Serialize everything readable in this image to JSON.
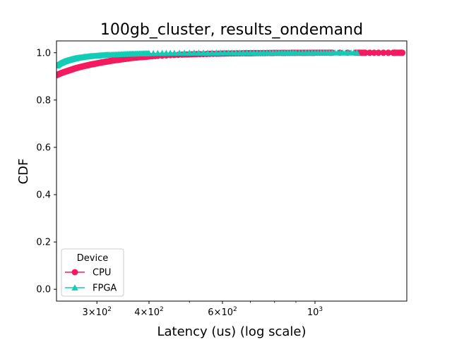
{
  "chart_data": {
    "type": "line",
    "title": "100gb_cluster, results_ondemand",
    "xlabel": "Latency (us) (log scale)",
    "ylabel": "CDF",
    "x_scale": "log",
    "xlim": [
      240,
      1660
    ],
    "ylim": [
      -0.05,
      1.05
    ],
    "x_ticks": [
      {
        "value": 300,
        "mantissa": "3",
        "base": "10",
        "exp": "2"
      },
      {
        "value": 400,
        "mantissa": "4",
        "base": "10",
        "exp": "2"
      },
      {
        "value": 600,
        "mantissa": "6",
        "base": "10",
        "exp": "2"
      },
      {
        "value": 1000,
        "mantissa": "",
        "base": "10",
        "exp": "3"
      }
    ],
    "x_minor_ticks": [
      500,
      700,
      800,
      900
    ],
    "y_ticks": [
      {
        "value": 0.0,
        "label": "0.0"
      },
      {
        "value": 0.2,
        "label": "0.2"
      },
      {
        "value": 0.4,
        "label": "0.4"
      },
      {
        "value": 0.6,
        "label": "0.6"
      },
      {
        "value": 0.8,
        "label": "0.8"
      },
      {
        "value": 1.0,
        "label": "1.0"
      }
    ],
    "grid": false,
    "legend": {
      "title": "Device",
      "placement": "lower-left"
    },
    "series": [
      {
        "name": "CPU",
        "color": "#f51b5e",
        "marker": "circle",
        "x": [
          240,
          245,
          250,
          255,
          260,
          265,
          270,
          280,
          290,
          300,
          310,
          320,
          330,
          340,
          350,
          360,
          380,
          400,
          420,
          450,
          480,
          500,
          520,
          550,
          580,
          600,
          620,
          650,
          680,
          700,
          720,
          750,
          780,
          800,
          830,
          850,
          880,
          900,
          930,
          950,
          980,
          1000,
          1040,
          1080,
          1100,
          1250,
          1280,
          1320,
          1420,
          1540,
          1560,
          1600,
          1620
        ],
        "y": [
          0.905,
          0.912,
          0.918,
          0.923,
          0.928,
          0.933,
          0.937,
          0.944,
          0.95,
          0.955,
          0.96,
          0.964,
          0.968,
          0.971,
          0.974,
          0.977,
          0.981,
          0.984,
          0.987,
          0.99,
          0.992,
          0.993,
          0.994,
          0.995,
          0.996,
          0.9965,
          0.997,
          0.9975,
          0.998,
          0.998,
          0.9985,
          0.9988,
          0.999,
          0.9992,
          0.9993,
          0.9994,
          0.9995,
          0.9996,
          0.9996,
          0.9997,
          0.9997,
          0.9998,
          0.9998,
          0.9998,
          0.9999,
          0.9999,
          0.9999,
          0.9999,
          1.0,
          1.0,
          1.0,
          1.0,
          1.0
        ]
      },
      {
        "name": "FPGA",
        "color": "#13ccb6",
        "marker": "triangle",
        "x": [
          240,
          245,
          250,
          255,
          260,
          265,
          270,
          280,
          290,
          300,
          310,
          320,
          340,
          360,
          380,
          400,
          430,
          460,
          500,
          540,
          580,
          620,
          660,
          700,
          740,
          780,
          820,
          860,
          900,
          950,
          1000,
          1050,
          1100,
          1150,
          1200,
          1260
        ],
        "y": [
          0.945,
          0.955,
          0.962,
          0.967,
          0.971,
          0.975,
          0.978,
          0.982,
          0.985,
          0.987,
          0.989,
          0.991,
          0.993,
          0.995,
          0.996,
          0.997,
          0.998,
          0.9985,
          0.999,
          0.9992,
          0.9994,
          0.9995,
          0.9996,
          0.9997,
          0.9997,
          0.9998,
          0.9998,
          0.9998,
          0.9999,
          0.9999,
          0.9999,
          1.0,
          1.0,
          1.0,
          1.0,
          1.0
        ]
      }
    ]
  }
}
